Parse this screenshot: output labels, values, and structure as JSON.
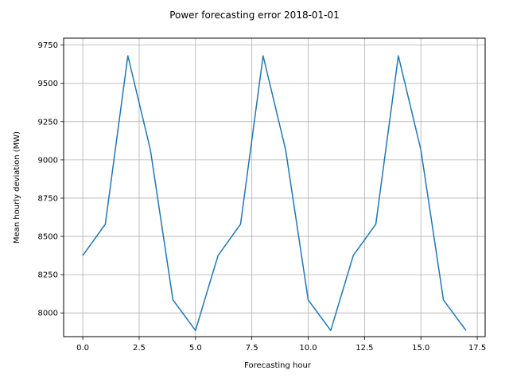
{
  "chart_data": {
    "type": "line",
    "title": "Power forecasting error 2018-01-01",
    "xlabel": "Forecasting hour",
    "ylabel": "Mean hourly deviation (MW)",
    "xlim": [
      -0.85,
      17.85
    ],
    "ylim": [
      7845,
      9795
    ],
    "xticks": [
      0.0,
      2.5,
      5.0,
      7.5,
      10.0,
      12.5,
      15.0,
      17.5
    ],
    "xtick_labels": [
      "0.0",
      "2.5",
      "5.0",
      "7.5",
      "10.0",
      "12.5",
      "15.0",
      "17.5"
    ],
    "yticks": [
      8000,
      8250,
      8500,
      8750,
      9000,
      9250,
      9500,
      9750
    ],
    "ytick_labels": [
      "8000",
      "8250",
      "8500",
      "8750",
      "9000",
      "9250",
      "9500",
      "9750"
    ],
    "grid": true,
    "series": [
      {
        "color": "#1f77b4",
        "x": [
          0,
          1,
          2,
          3,
          4,
          5,
          6,
          7,
          8,
          9,
          10,
          11,
          12,
          13,
          14,
          15,
          16,
          17
        ],
        "values": [
          8375,
          8580,
          9680,
          9065,
          8085,
          7885,
          8375,
          8580,
          9680,
          9065,
          8085,
          7885,
          8375,
          8580,
          9680,
          9065,
          8085,
          7885
        ]
      }
    ]
  }
}
